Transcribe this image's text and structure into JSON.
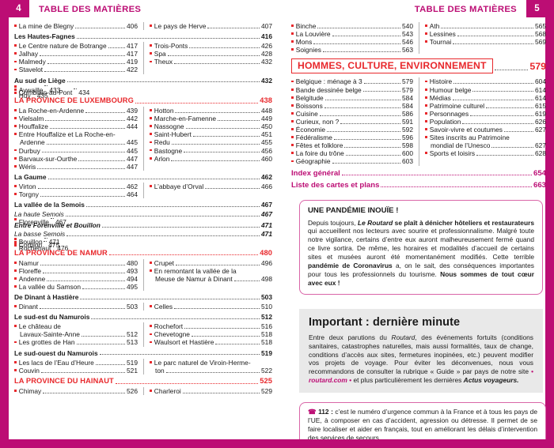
{
  "left_page": {
    "page_number": "4",
    "header_title": "TABLE DES MATIÈRES",
    "blocks": [
      {
        "type": "pair",
        "left": [
          {
            "label": "La mine de Blegny",
            "page": "406"
          }
        ],
        "right": [
          {
            "label": "Le pays de Herve",
            "page": "407"
          }
        ]
      },
      {
        "type": "full",
        "style": "bold",
        "label": "Les Hautes-Fagnes",
        "page": "416"
      },
      {
        "type": "pair",
        "left": [
          {
            "label": "Le Centre nature de Botrange",
            "page": "417"
          },
          {
            "label": "Jalhay",
            "page": "417"
          },
          {
            "label": "Malmedy",
            "page": "419"
          },
          {
            "label": "Stavelot",
            "page": "422"
          }
        ],
        "right": [
          {
            "label": "Trois-Ponts",
            "page": "426"
          },
          {
            "label": "Spa",
            "page": "428"
          },
          {
            "label": "Theux",
            "page": "432"
          }
        ]
      },
      {
        "type": "full",
        "style": "bold",
        "label": "Au sud de Liège",
        "page": "432"
      },
      {
        "type": "full",
        "style": "bullet",
        "label": "Aywaille",
        "page": "433"
      },
      {
        "type": "full",
        "style": "bullet",
        "label": "Comblain-au-Pont",
        "page": "434"
      },
      {
        "type": "full",
        "style": "bullet",
        "label": "Huy",
        "page": "435"
      },
      {
        "type": "full",
        "style": "red",
        "label": "LA PROVINCE DE LUXEMBOURG",
        "page": "438"
      },
      {
        "type": "pair",
        "left": [
          {
            "label": "La Roche-en-Ardenne",
            "page": "439"
          },
          {
            "label": "Vielsalm",
            "page": "442"
          },
          {
            "label": "Houffalize",
            "page": "444"
          },
          {
            "label": "Entre Houffalize et La Roche-en-",
            "label2": "Ardenne",
            "page": "445"
          },
          {
            "label": "Durbuy",
            "page": "445"
          },
          {
            "label": "Barvaux-sur-Ourthe",
            "page": "447"
          },
          {
            "label": "Wéris",
            "page": "447"
          }
        ],
        "right": [
          {
            "label": "Hotton",
            "page": "448"
          },
          {
            "label": "Marche-en-Famenne",
            "page": "449"
          },
          {
            "label": "Nassogne",
            "page": "450"
          },
          {
            "label": "Saint-Hubert",
            "page": "451"
          },
          {
            "label": "Redu",
            "page": "455"
          },
          {
            "label": "Bastogne",
            "page": "456"
          },
          {
            "label": "Arlon",
            "page": "460"
          }
        ]
      },
      {
        "type": "full",
        "style": "bold",
        "label": "La Gaume",
        "page": "462"
      },
      {
        "type": "pair",
        "left": [
          {
            "label": "Virton",
            "page": "462"
          },
          {
            "label": "Torgny",
            "page": "464"
          }
        ],
        "right": [
          {
            "label": "L’abbaye d’Orval",
            "page": "466"
          }
        ]
      },
      {
        "type": "full",
        "style": "bold",
        "label": "La vallée de la Semois",
        "page": "467"
      },
      {
        "type": "full",
        "style": "italic",
        "label": "La haute Semois",
        "page": "467"
      },
      {
        "type": "full",
        "style": "bullet",
        "label": "Florenville",
        "page": "467"
      },
      {
        "type": "full",
        "style": "bold-italic",
        "label": "Entre Forenville et Bouillon",
        "page": "471"
      },
      {
        "type": "full",
        "style": "italic",
        "label": "La basse Semois",
        "page": "471"
      },
      {
        "type": "full",
        "style": "bullet",
        "label": "Bouillon",
        "page": "471"
      },
      {
        "type": "full",
        "style": "bullet",
        "label": "Corbion",
        "page": "475"
      },
      {
        "type": "full",
        "style": "bullet",
        "label": "Rochehaut",
        "page": "476"
      },
      {
        "type": "full",
        "style": "red",
        "label": "LA PROVINCE DE NAMUR",
        "page": "480"
      },
      {
        "type": "pair",
        "left": [
          {
            "label": "Namur",
            "page": "480"
          },
          {
            "label": "Floreffe",
            "page": "493"
          },
          {
            "label": "Andenne",
            "page": "494"
          },
          {
            "label": "La vallée du Samson",
            "page": "495"
          }
        ],
        "right": [
          {
            "label": "Crupet",
            "page": "496"
          },
          {
            "label": "En remontant la vallée de la",
            "label2": "Meuse de Namur à Dinant",
            "page": "498"
          }
        ]
      },
      {
        "type": "full",
        "style": "bold",
        "label": "De Dinant à Hastière",
        "page": "503"
      },
      {
        "type": "pair",
        "left": [
          {
            "label": "Dinant",
            "page": "503"
          }
        ],
        "right": [
          {
            "label": "Celles",
            "page": "510"
          }
        ]
      },
      {
        "type": "full",
        "style": "bold",
        "label": "Le sud-est du Namurois",
        "page": "512"
      },
      {
        "type": "pair",
        "left": [
          {
            "label": "Le château de",
            "label2": "Lavaux-Sainte-Anne",
            "page": "512"
          },
          {
            "label": "Les grottes de Han",
            "page": "513"
          }
        ],
        "right": [
          {
            "label": "Rochefort",
            "page": "516"
          },
          {
            "label": "Chevetogne",
            "page": "518"
          },
          {
            "label": "Waulsort et Hastière",
            "page": "518"
          }
        ]
      },
      {
        "type": "full",
        "style": "bold",
        "label": "Le sud-ouest du Namurois",
        "page": "519"
      },
      {
        "type": "pair",
        "left": [
          {
            "label": "Les lacs de l’Eau d’Heure",
            "page": "519"
          },
          {
            "label": "Couvin",
            "page": "521"
          }
        ],
        "right": [
          {
            "label": "Le parc naturel de Viroin-Herme-",
            "label2": "ton",
            "page": "522"
          }
        ]
      },
      {
        "type": "full",
        "style": "red",
        "label": "LA PROVINCE DU HAINAUT",
        "page": "525"
      },
      {
        "type": "pair",
        "left": [
          {
            "label": "Chimay",
            "page": "526"
          }
        ],
        "right": [
          {
            "label": "Charleroi",
            "page": "529"
          }
        ]
      }
    ]
  },
  "right_page": {
    "page_number": "5",
    "header_title": "TABLE DES MATIÈRES",
    "blocks": [
      {
        "type": "pair",
        "left": [
          {
            "label": "Binche",
            "page": "540"
          },
          {
            "label": "La Louvière",
            "page": "543"
          },
          {
            "label": "Mons",
            "page": "546"
          },
          {
            "label": "Soignies",
            "page": "563"
          }
        ],
        "right": [
          {
            "label": "Ath",
            "page": "565"
          },
          {
            "label": "Lessines",
            "page": "568"
          },
          {
            "label": "Tournai",
            "page": "569"
          }
        ]
      },
      {
        "type": "boxed",
        "label": "HOMMES, CULTURE, ENVIRONNEMENT",
        "page": "579"
      },
      {
        "type": "pair",
        "left": [
          {
            "label": "Belgique : ménage à 3",
            "page": "579"
          },
          {
            "label": "Bande dessinée belge",
            "page": "579"
          },
          {
            "label": "Belgitude",
            "page": "584"
          },
          {
            "label": "Boissons",
            "page": "584"
          },
          {
            "label": "Cuisine",
            "page": "586"
          },
          {
            "label": "Curieux, non ?",
            "page": "591"
          },
          {
            "label": "Économie",
            "page": "592"
          },
          {
            "label": "Fédéralisme",
            "page": "596"
          },
          {
            "label": "Fêtes et folklore",
            "page": "598"
          },
          {
            "label": "La foire du trône",
            "page": "600"
          },
          {
            "label": "Géographie",
            "page": "603"
          }
        ],
        "right": [
          {
            "label": "Histoire",
            "page": "604"
          },
          {
            "label": "Humour belge",
            "page": "614"
          },
          {
            "label": "Médias",
            "page": "614"
          },
          {
            "label": "Patrimoine culturel",
            "page": "615"
          },
          {
            "label": "Personnages",
            "page": "619"
          },
          {
            "label": "Population",
            "page": "626"
          },
          {
            "label": "Savoir-vivre et coutumes",
            "page": "627"
          },
          {
            "label": "Sites inscrits au Patrimoine",
            "label2": "mondial de l’Unesco",
            "page": "627"
          },
          {
            "label": "Sports et loisirs",
            "page": "628"
          }
        ]
      },
      {
        "type": "full",
        "style": "pink",
        "label": "Index général",
        "page": "654"
      },
      {
        "type": "full",
        "style": "pink",
        "label": "Liste des cartes et plans",
        "page": "663"
      }
    ],
    "pandemic_box": {
      "title": "UNE PANDÉMIE INOUÏE !",
      "segments": [
        {
          "t": "Depuis toujours, ",
          "s": "n"
        },
        {
          "t": "Le Routard",
          "s": "bi"
        },
        {
          "t": " se plaît à dénicher hôteliers et restaurateurs",
          "s": "b"
        },
        {
          "t": " qui accueillent nos lecteurs avec sourire et professionnalisme. Malgré toute notre vigilance, certains d’entre eux auront malheureusement fermé quand ce livre sortira. De même, les horaires et modalités d’accueil de certains sites et musées auront été momentanément modifiés. Cette terrible ",
          "s": "n"
        },
        {
          "t": "pandémie de Coronavirus",
          "s": "b"
        },
        {
          "t": " a, on le sait, des conséquences importantes pour tous les professionnels du tourisme. ",
          "s": "n"
        },
        {
          "t": "Nous sommes de tout cœur avec eux !",
          "s": "b"
        }
      ]
    },
    "important_box": {
      "title": "Important : dernière minute",
      "segments": [
        {
          "t": "Entre deux parutions du ",
          "s": "n"
        },
        {
          "t": "Routard",
          "s": "i"
        },
        {
          "t": ", des événements fortuits (conditions sanitaires, catastrophes naturelles, mais aussi formalités, taux de change, conditions d’accès aux sites, fermetures inopinées, etc.) peuvent modifier vos projets de voyage. Pour éviter les déconvenues, nous vous recommandons de consulter la rubrique « Guide » par pays de notre site ",
          "s": "n"
        },
        {
          "t": "• ",
          "s": "pb"
        },
        {
          "t": "routard.com",
          "s": "pbi",
          "link": true
        },
        {
          "t": " •",
          "s": "pb"
        },
        {
          "t": " et plus particulièrement les dernières ",
          "s": "n"
        },
        {
          "t": "Actus voyageurs.",
          "s": "bi"
        }
      ]
    },
    "emergency_box": {
      "icon": "☎",
      "segments": [
        {
          "t": "112 :",
          "s": "b"
        },
        {
          "t": " c’est le numéro d’urgence commun à la France et à tous les pays de l’UE, à composer en cas d’accident, agression ou détresse. Il permet de se faire localiser et aider en français, tout en améliorant les délais d’intervention des services de secours.",
          "s": "n"
        }
      ]
    }
  },
  "colors": {
    "magenta": "#bc0d74",
    "red": "#e8282c",
    "box_border_pink": "#d966a8",
    "gray_box": "#e9e9e9"
  }
}
